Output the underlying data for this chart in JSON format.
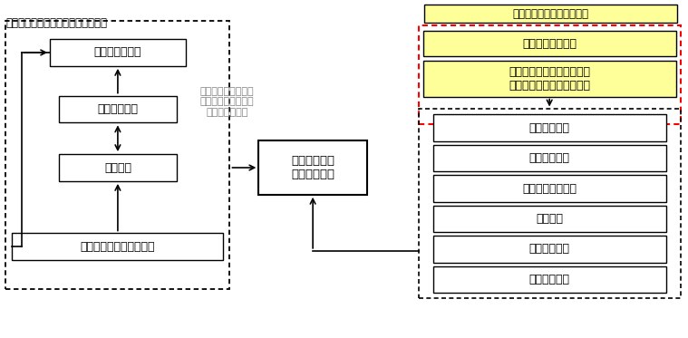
{
  "title_left": "地球化学概念モデルの妥当性の評価",
  "title_right": "現在の地球化学特性の調査",
  "label_fuka": "不確実性の低減",
  "label_model_fix": "モデルの修正",
  "label_tsuika": "追加調査",
  "label_fuka_hand": "不確実性低減手法の検討",
  "label_chikyu": "地球化学概念\nモデルの構築",
  "label_center_text": "現在～将来の３次元\n的な地球化学特性の\n不確実性の提示",
  "label_sample": "地下水試料の採水",
  "label_measure": "測定・分析；物理化学パラ\nメータ・化学成分・同位体",
  "right_boxes": [
    "地下水の起源",
    "地下水の年代",
    "地下水の流動経路",
    "鉱物組成",
    "水－岩石反応",
    "地下水の混合"
  ],
  "bg_color": "#ffffff",
  "yellow_color": "#ffff99",
  "red_dashed_color": "#ff0000",
  "gray_text_color": "#808080",
  "font_size_title": 8.5,
  "font_size_box": 9,
  "font_size_small": 8
}
